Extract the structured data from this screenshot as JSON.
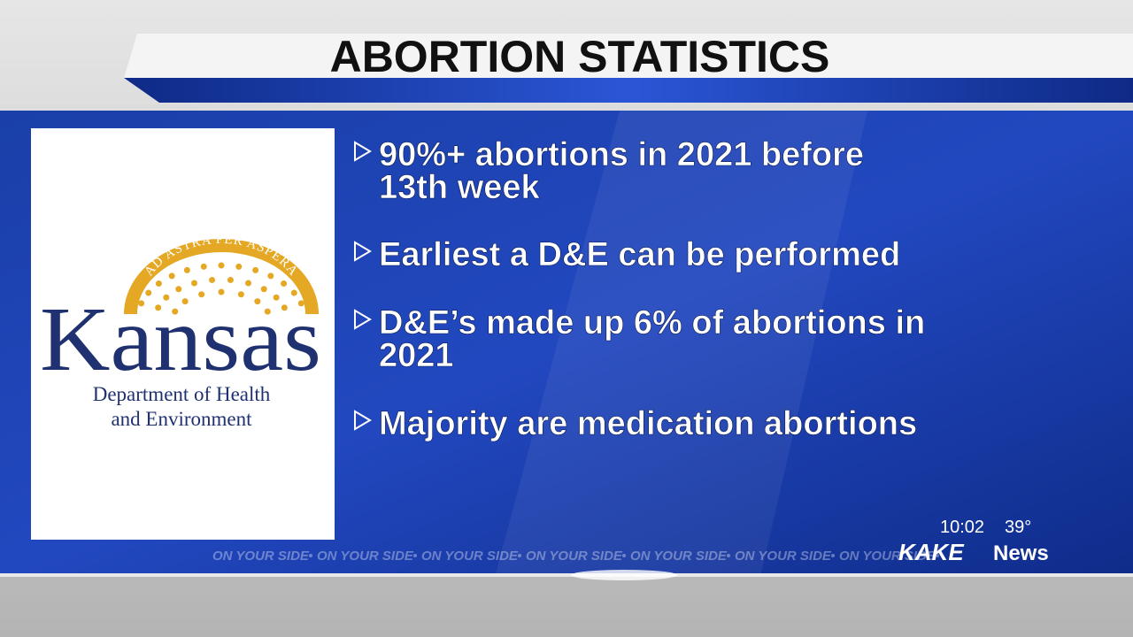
{
  "header": {
    "title": "ABORTION STATISTICS"
  },
  "bullets": [
    "90%+ abortions in 2021 before",
    "13th week",
    "Earliest a D&E can be performed",
    "D&E’s made up 6% of abortions in",
    "2021",
    "Majority are medication abortions"
  ],
  "logo": {
    "motto": "AD ASTRA PER ASPERA",
    "name": "Kansas",
    "line1": "Department of Health",
    "line2": "and Environment"
  },
  "status": {
    "time": "10:02",
    "temperature": "39°"
  },
  "ticker": "ON YOUR SIDE",
  "brand": {
    "name": "KAKE",
    "suffix": "News"
  }
}
